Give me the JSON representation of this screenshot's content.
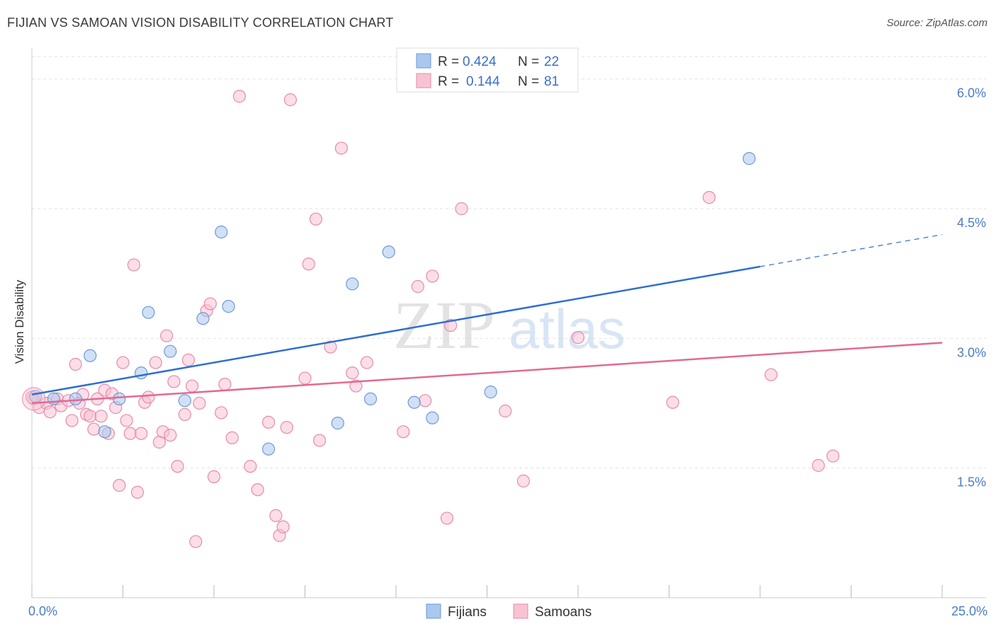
{
  "title": "FIJIAN VS SAMOAN VISION DISABILITY CORRELATION CHART",
  "source": "Source: ZipAtlas.com",
  "watermark": {
    "zip": "ZIP",
    "atlas": "atlas"
  },
  "chart_data": {
    "type": "scatter",
    "xlabel": "",
    "ylabel": "Vision Disability",
    "xlim": [
      0,
      25
    ],
    "ylim": [
      0,
      6.3
    ],
    "x_tick_labels": [
      {
        "value": 0,
        "label": "0.0%"
      },
      {
        "value": 25,
        "label": "25.0%"
      }
    ],
    "y_ticks": [
      {
        "value": 1.5,
        "label": "1.5%"
      },
      {
        "value": 3.0,
        "label": "3.0%"
      },
      {
        "value": 4.5,
        "label": "4.5%"
      },
      {
        "value": 6.0,
        "label": "6.0%"
      }
    ],
    "grid": true,
    "legend": {
      "position": "top-center",
      "rows": [
        {
          "r_label": "R =",
          "r_value": "0.424",
          "n_label": "N =",
          "n_value": "22"
        },
        {
          "r_label": "R =",
          "r_value": "0.144",
          "n_label": "N =",
          "n_value": "81"
        }
      ]
    },
    "series": [
      {
        "name": "Fijians",
        "color": "#a9c7ef",
        "stroke": "#6f9ad8",
        "line_color": "#2f6fcf",
        "trend": {
          "x0": 0,
          "y0": 2.35,
          "x1": 20,
          "y1": 3.83,
          "dash_to_x": 25,
          "dash_to_y": 4.2
        },
        "points": [
          [
            0.1,
            2.33
          ],
          [
            1.2,
            2.3
          ],
          [
            1.6,
            2.8
          ],
          [
            2.4,
            2.3
          ],
          [
            2.0,
            1.92
          ],
          [
            3.0,
            2.6
          ],
          [
            3.2,
            3.3
          ],
          [
            3.8,
            2.85
          ],
          [
            4.2,
            2.28
          ],
          [
            4.7,
            3.23
          ],
          [
            5.2,
            4.23
          ],
          [
            5.4,
            3.37
          ],
          [
            6.5,
            1.72
          ],
          [
            8.4,
            2.02
          ],
          [
            8.8,
            3.63
          ],
          [
            9.3,
            2.3
          ],
          [
            9.8,
            4.0
          ],
          [
            10.5,
            2.26
          ],
          [
            11.0,
            2.08
          ],
          [
            12.6,
            2.38
          ],
          [
            19.7,
            5.08
          ],
          [
            0.6,
            2.3
          ]
        ]
      },
      {
        "name": "Samoans",
        "color": "#f7c3d3",
        "stroke": "#e98aa9",
        "line_color": "#e26a93",
        "trend": {
          "x0": 0,
          "y0": 2.25,
          "x1": 25,
          "y1": 2.95
        },
        "points": [
          [
            0.05,
            2.3
          ],
          [
            0.2,
            2.2
          ],
          [
            0.4,
            2.25
          ],
          [
            0.5,
            2.15
          ],
          [
            0.7,
            2.3
          ],
          [
            0.8,
            2.22
          ],
          [
            1.0,
            2.28
          ],
          [
            1.1,
            2.05
          ],
          [
            1.2,
            2.7
          ],
          [
            1.3,
            2.25
          ],
          [
            1.4,
            2.35
          ],
          [
            1.5,
            2.12
          ],
          [
            1.6,
            2.1
          ],
          [
            1.7,
            1.95
          ],
          [
            1.8,
            2.3
          ],
          [
            1.9,
            2.1
          ],
          [
            2.0,
            2.4
          ],
          [
            2.1,
            1.9
          ],
          [
            2.2,
            2.36
          ],
          [
            2.3,
            2.2
          ],
          [
            2.4,
            1.3
          ],
          [
            2.5,
            2.72
          ],
          [
            2.6,
            2.05
          ],
          [
            2.7,
            1.9
          ],
          [
            2.8,
            3.85
          ],
          [
            2.9,
            1.22
          ],
          [
            3.0,
            1.9
          ],
          [
            3.1,
            2.26
          ],
          [
            3.2,
            2.32
          ],
          [
            3.4,
            2.72
          ],
          [
            3.5,
            1.8
          ],
          [
            3.6,
            1.92
          ],
          [
            3.7,
            3.03
          ],
          [
            3.8,
            1.88
          ],
          [
            3.9,
            2.5
          ],
          [
            4.0,
            1.52
          ],
          [
            4.2,
            2.12
          ],
          [
            4.3,
            2.75
          ],
          [
            4.4,
            2.45
          ],
          [
            4.5,
            0.65
          ],
          [
            4.6,
            2.25
          ],
          [
            4.8,
            3.32
          ],
          [
            4.9,
            3.4
          ],
          [
            5.0,
            1.4
          ],
          [
            5.2,
            2.14
          ],
          [
            5.3,
            2.47
          ],
          [
            5.5,
            1.85
          ],
          [
            5.7,
            5.8
          ],
          [
            6.0,
            1.52
          ],
          [
            6.2,
            1.25
          ],
          [
            6.5,
            2.03
          ],
          [
            6.7,
            0.95
          ],
          [
            6.8,
            0.72
          ],
          [
            6.9,
            0.82
          ],
          [
            7.0,
            1.97
          ],
          [
            7.1,
            5.76
          ],
          [
            7.5,
            2.54
          ],
          [
            7.6,
            3.86
          ],
          [
            7.8,
            4.38
          ],
          [
            7.9,
            1.82
          ],
          [
            8.2,
            2.9
          ],
          [
            8.5,
            5.2
          ],
          [
            8.8,
            2.6
          ],
          [
            8.9,
            2.45
          ],
          [
            9.2,
            2.72
          ],
          [
            10.2,
            1.92
          ],
          [
            10.6,
            3.6
          ],
          [
            10.8,
            2.28
          ],
          [
            11.0,
            3.72
          ],
          [
            11.4,
            0.92
          ],
          [
            11.5,
            3.15
          ],
          [
            11.8,
            4.5
          ],
          [
            13.0,
            2.16
          ],
          [
            13.5,
            1.35
          ],
          [
            15.0,
            3.01
          ],
          [
            17.6,
            2.26
          ],
          [
            18.6,
            4.63
          ],
          [
            20.3,
            2.58
          ],
          [
            21.6,
            1.53
          ],
          [
            22.0,
            1.64
          ],
          [
            0.0,
            2.32
          ]
        ]
      }
    ]
  }
}
